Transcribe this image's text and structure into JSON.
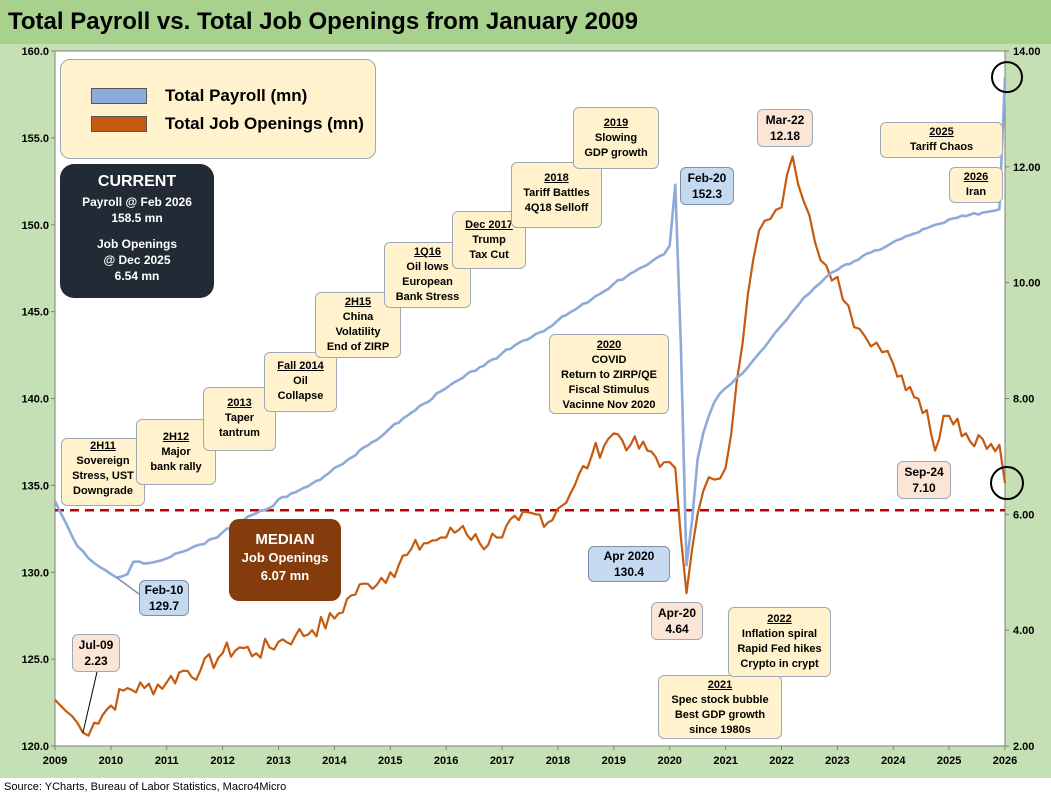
{
  "title": "Total Payroll vs. Total Job Openings from January 2009",
  "source": "Source: YCharts, Bureau of Labor Statistics, Macro4Micro",
  "colors": {
    "payroll": "#8eaadb",
    "openings": "#c55a11",
    "median_line": "#c00000",
    "plot_bg": "#ffffff",
    "frame_bg": "#c5e0b4",
    "title_bg": "#a9d18e"
  },
  "legend": {
    "payroll": "Total Payroll (mn)",
    "openings": "Total Job Openings (mn)"
  },
  "current": {
    "title": "CURRENT",
    "payroll_label": "Payroll @ Feb 2026",
    "payroll_value": "158.5 mn",
    "openings_label": "Job Openings",
    "openings_date": "@ Dec 2025",
    "openings_value": "6.54 mn"
  },
  "median": {
    "title": "MEDIAN",
    "label": "Job Openings",
    "value": "6.07 mn"
  },
  "annotations": [
    {
      "head": "2H11",
      "lines": [
        "Sovereign",
        "Stress, UST",
        "Downgrade"
      ]
    },
    {
      "head": "2H12",
      "lines": [
        "Major",
        "bank rally"
      ]
    },
    {
      "head": "2013",
      "lines": [
        "Taper",
        "tantrum"
      ]
    },
    {
      "head": "Fall 2014",
      "lines": [
        "Oil",
        "Collapse"
      ]
    },
    {
      "head": "2H15",
      "lines": [
        "China",
        "Volatility",
        "End of ZIRP"
      ]
    },
    {
      "head": "1Q16",
      "lines": [
        "Oil lows",
        "European",
        "Bank Stress"
      ]
    },
    {
      "head": "Dec 2017",
      "lines": [
        "Trump",
        "Tax Cut"
      ]
    },
    {
      "head": "2018",
      "lines": [
        "Tariff Battles",
        "4Q18 Selloff"
      ]
    },
    {
      "head": "2019",
      "lines": [
        "Slowing",
        "GDP growth"
      ]
    },
    {
      "head": "2020",
      "lines": [
        "COVID",
        "Return to ZIRP/QE",
        "Fiscal Stimulus",
        "Vacinne Nov 2020"
      ]
    },
    {
      "head": "2021",
      "lines": [
        "Spec stock bubble",
        "Best GDP growth",
        "since 1980s"
      ]
    },
    {
      "head": "2022",
      "lines": [
        "Inflation spiral",
        "Rapid Fed hikes",
        "Crypto in crypt"
      ]
    },
    {
      "head": "2025",
      "lines": [
        "Tariff Chaos"
      ]
    },
    {
      "head": "2026",
      "lines": [
        "Iran"
      ]
    }
  ],
  "callouts": [
    {
      "label": "Feb-10",
      "value": "129.7"
    },
    {
      "label": "Feb-20",
      "value": "152.3"
    },
    {
      "label": "Apr 2020",
      "value": "130.4"
    },
    {
      "label": "Jul-09",
      "value": "2.23"
    },
    {
      "label": "Apr-20",
      "value": "4.64"
    },
    {
      "label": "Mar-22",
      "value": "12.18"
    },
    {
      "label": "Sep-24",
      "value": "7.10"
    }
  ],
  "chart_data": {
    "type": "line",
    "title": "Total Payroll vs. Total Job Openings from January 2009",
    "x_ticks": [
      "2009",
      "2010",
      "2011",
      "2012",
      "2013",
      "2014",
      "2015",
      "2016",
      "2017",
      "2018",
      "2019",
      "2020",
      "2021",
      "2022",
      "2023",
      "2024",
      "2025",
      "2026"
    ],
    "y_left": {
      "ticks": [
        "120.0",
        "125.0",
        "130.0",
        "135.0",
        "140.0",
        "145.0",
        "150.0",
        "155.0",
        "160.0"
      ],
      "ylim": [
        120,
        160
      ]
    },
    "y_right": {
      "ticks": [
        "2.00",
        "4.00",
        "6.00",
        "8.00",
        "10.00",
        "12.00",
        "14.00"
      ],
      "ylim": [
        2,
        14
      ]
    },
    "median_openings": 6.07,
    "series": [
      {
        "name": "Total Payroll (mn)",
        "axis": "left",
        "points": [
          [
            2009.0,
            134.1
          ],
          [
            2009.2,
            132.8
          ],
          [
            2009.4,
            131.5
          ],
          [
            2009.6,
            130.8
          ],
          [
            2009.8,
            130.3
          ],
          [
            2010.0,
            129.9
          ],
          [
            2010.1,
            129.7
          ],
          [
            2010.3,
            129.9
          ],
          [
            2010.4,
            130.6
          ],
          [
            2010.6,
            130.5
          ],
          [
            2010.8,
            130.6
          ],
          [
            2011.0,
            130.8
          ],
          [
            2011.3,
            131.2
          ],
          [
            2011.6,
            131.6
          ],
          [
            2011.9,
            132.0
          ],
          [
            2012.0,
            132.3
          ],
          [
            2012.3,
            132.9
          ],
          [
            2012.6,
            133.4
          ],
          [
            2012.9,
            133.8
          ],
          [
            2013.0,
            134.2
          ],
          [
            2013.3,
            134.6
          ],
          [
            2013.6,
            135.1
          ],
          [
            2013.9,
            135.7
          ],
          [
            2014.0,
            136.0
          ],
          [
            2014.3,
            136.6
          ],
          [
            2014.6,
            137.3
          ],
          [
            2014.9,
            138.0
          ],
          [
            2015.0,
            138.3
          ],
          [
            2015.3,
            139.0
          ],
          [
            2015.6,
            139.7
          ],
          [
            2015.9,
            140.4
          ],
          [
            2016.0,
            140.6
          ],
          [
            2016.3,
            141.2
          ],
          [
            2016.6,
            141.8
          ],
          [
            2016.9,
            142.3
          ],
          [
            2017.0,
            142.6
          ],
          [
            2017.3,
            143.2
          ],
          [
            2017.6,
            143.7
          ],
          [
            2017.9,
            144.2
          ],
          [
            2018.0,
            144.5
          ],
          [
            2018.3,
            145.1
          ],
          [
            2018.6,
            145.7
          ],
          [
            2018.9,
            146.3
          ],
          [
            2019.0,
            146.6
          ],
          [
            2019.3,
            147.2
          ],
          [
            2019.6,
            147.7
          ],
          [
            2019.9,
            148.3
          ],
          [
            2020.0,
            148.8
          ],
          [
            2020.1,
            152.3
          ],
          [
            2020.2,
            143.0
          ],
          [
            2020.3,
            130.4
          ],
          [
            2020.4,
            133.0
          ],
          [
            2020.5,
            136.5
          ],
          [
            2020.6,
            138.0
          ],
          [
            2020.7,
            139.0
          ],
          [
            2020.8,
            139.8
          ],
          [
            2020.9,
            140.3
          ],
          [
            2021.0,
            140.6
          ],
          [
            2021.2,
            141.2
          ],
          [
            2021.4,
            141.8
          ],
          [
            2021.6,
            142.6
          ],
          [
            2021.8,
            143.4
          ],
          [
            2022.0,
            144.2
          ],
          [
            2022.2,
            145.0
          ],
          [
            2022.4,
            145.8
          ],
          [
            2022.6,
            146.4
          ],
          [
            2022.8,
            147.0
          ],
          [
            2023.0,
            147.4
          ],
          [
            2023.3,
            147.9
          ],
          [
            2023.6,
            148.4
          ],
          [
            2023.9,
            148.8
          ],
          [
            2024.0,
            149.0
          ],
          [
            2024.3,
            149.4
          ],
          [
            2024.6,
            149.8
          ],
          [
            2024.9,
            150.1
          ],
          [
            2025.0,
            150.3
          ],
          [
            2025.3,
            150.5
          ],
          [
            2025.6,
            150.7
          ],
          [
            2025.9,
            150.9
          ],
          [
            2026.0,
            158.5
          ]
        ]
      },
      {
        "name": "Total Job Openings (mn)",
        "axis": "right",
        "points": [
          [
            2009.0,
            2.8
          ],
          [
            2009.2,
            2.6
          ],
          [
            2009.4,
            2.4
          ],
          [
            2009.5,
            2.23
          ],
          [
            2009.7,
            2.4
          ],
          [
            2010.0,
            2.7
          ],
          [
            2010.3,
            3.0
          ],
          [
            2010.6,
            3.0
          ],
          [
            2011.0,
            3.1
          ],
          [
            2011.3,
            3.3
          ],
          [
            2011.6,
            3.3
          ],
          [
            2012.0,
            3.6
          ],
          [
            2012.3,
            3.7
          ],
          [
            2012.6,
            3.6
          ],
          [
            2013.0,
            3.8
          ],
          [
            2013.3,
            3.9
          ],
          [
            2013.6,
            4.0
          ],
          [
            2014.0,
            4.2
          ],
          [
            2014.3,
            4.6
          ],
          [
            2014.6,
            4.8
          ],
          [
            2015.0,
            5.0
          ],
          [
            2015.3,
            5.3
          ],
          [
            2015.6,
            5.5
          ],
          [
            2015.9,
            5.6
          ],
          [
            2016.0,
            5.6
          ],
          [
            2016.3,
            5.8
          ],
          [
            2016.6,
            5.5
          ],
          [
            2016.9,
            5.6
          ],
          [
            2017.0,
            5.6
          ],
          [
            2017.3,
            5.9
          ],
          [
            2017.6,
            6.0
          ],
          [
            2017.9,
            5.9
          ],
          [
            2018.0,
            6.1
          ],
          [
            2018.3,
            6.5
          ],
          [
            2018.6,
            7.0
          ],
          [
            2018.9,
            7.3
          ],
          [
            2019.0,
            7.4
          ],
          [
            2019.3,
            7.2
          ],
          [
            2019.6,
            7.1
          ],
          [
            2019.9,
            6.9
          ],
          [
            2020.0,
            6.9
          ],
          [
            2020.1,
            6.8
          ],
          [
            2020.2,
            5.6
          ],
          [
            2020.3,
            4.64
          ],
          [
            2020.4,
            5.4
          ],
          [
            2020.6,
            6.4
          ],
          [
            2020.8,
            6.6
          ],
          [
            2021.0,
            6.8
          ],
          [
            2021.2,
            8.3
          ],
          [
            2021.4,
            9.8
          ],
          [
            2021.6,
            10.9
          ],
          [
            2021.8,
            11.1
          ],
          [
            2022.0,
            11.3
          ],
          [
            2022.2,
            12.18
          ],
          [
            2022.4,
            11.4
          ],
          [
            2022.6,
            10.7
          ],
          [
            2022.8,
            10.3
          ],
          [
            2023.0,
            10.1
          ],
          [
            2023.2,
            9.6
          ],
          [
            2023.4,
            9.2
          ],
          [
            2023.6,
            8.9
          ],
          [
            2023.8,
            8.8
          ],
          [
            2024.0,
            8.6
          ],
          [
            2024.3,
            8.2
          ],
          [
            2024.6,
            7.8
          ],
          [
            2024.75,
            7.1
          ],
          [
            2024.9,
            7.7
          ],
          [
            2025.0,
            7.7
          ],
          [
            2025.3,
            7.4
          ],
          [
            2025.6,
            7.3
          ],
          [
            2025.9,
            7.2
          ],
          [
            2026.0,
            6.54
          ]
        ]
      }
    ]
  }
}
